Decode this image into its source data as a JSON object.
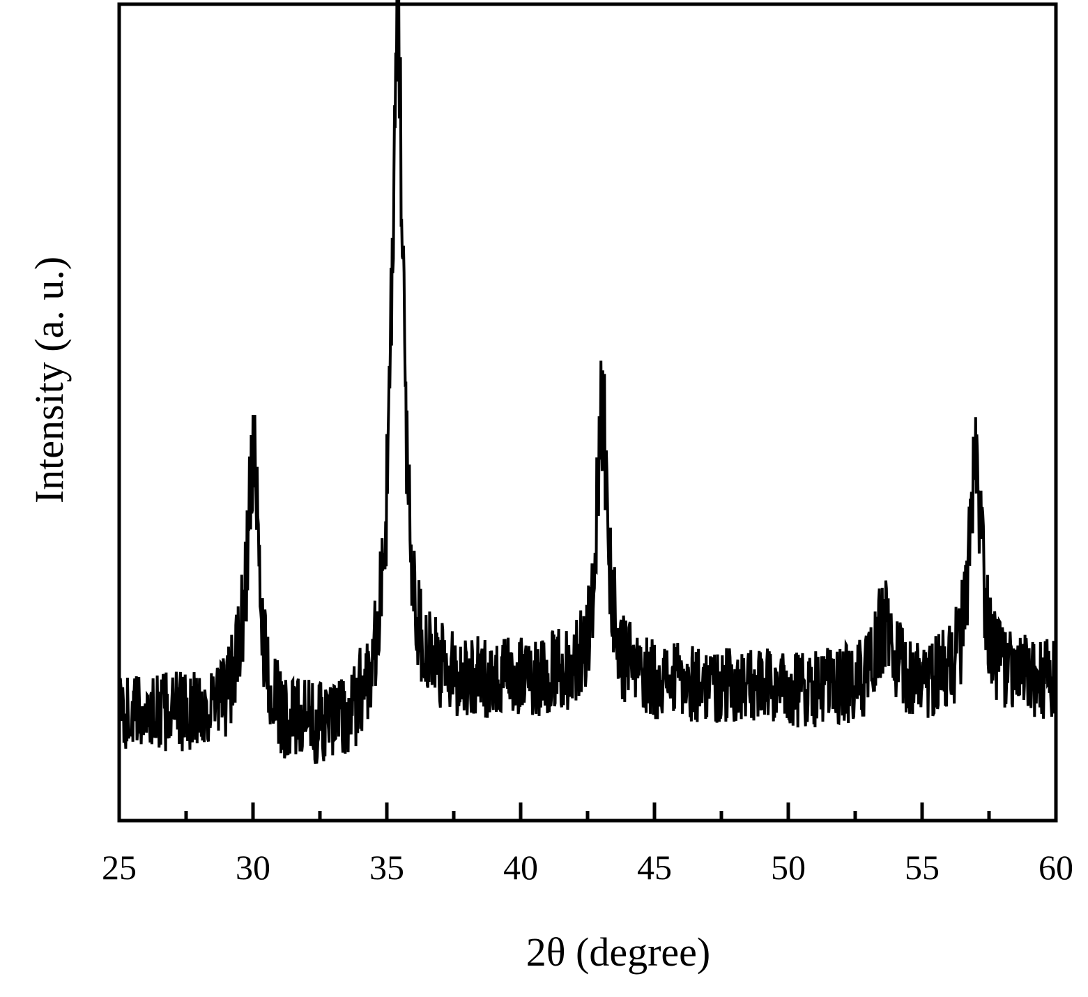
{
  "chart_data": {
    "type": "line",
    "title": "",
    "xlabel": "2θ (degree)",
    "ylabel": "Intensity (a. u.)",
    "xlim": [
      25,
      60
    ],
    "ylim": [
      0,
      100
    ],
    "x_ticks_major": [
      25,
      30,
      35,
      40,
      45,
      50,
      55,
      60
    ],
    "x_tick_labels": [
      "25",
      "30",
      "35",
      "40",
      "45",
      "50",
      "55",
      "60"
    ],
    "x_ticks_minor": [
      27.5,
      32.5,
      37.5,
      42.5,
      47.5,
      52.5,
      57.5
    ],
    "y_tick_labels_shown": false,
    "grid": false,
    "legend": "none",
    "line_color": "#000000",
    "background": "noisy",
    "noise_amplitude": 4.5,
    "noise_steps_per_degree": 45,
    "baseline": [
      {
        "x": 25.0,
        "y": 13.0
      },
      {
        "x": 29.0,
        "y": 13.0
      },
      {
        "x": 29.4,
        "y": 15.0
      },
      {
        "x": 31.0,
        "y": 11.0
      },
      {
        "x": 33.5,
        "y": 11.0
      },
      {
        "x": 34.5,
        "y": 14.0
      },
      {
        "x": 37.0,
        "y": 16.5
      },
      {
        "x": 42.0,
        "y": 17.5
      },
      {
        "x": 44.0,
        "y": 17.0
      },
      {
        "x": 50.0,
        "y": 16.0
      },
      {
        "x": 53.0,
        "y": 16.0
      },
      {
        "x": 55.0,
        "y": 16.5
      },
      {
        "x": 58.0,
        "y": 17.0
      },
      {
        "x": 60.0,
        "y": 17.0
      }
    ],
    "peaks": [
      {
        "position": 30.0,
        "height": 30,
        "fwhm": 0.55
      },
      {
        "position": 35.4,
        "height": 80,
        "fwhm": 0.55
      },
      {
        "position": 43.05,
        "height": 33,
        "fwhm": 0.5
      },
      {
        "position": 53.6,
        "height": 8,
        "fwhm": 0.7
      },
      {
        "position": 57.0,
        "height": 25,
        "fwhm": 0.6
      }
    ]
  }
}
